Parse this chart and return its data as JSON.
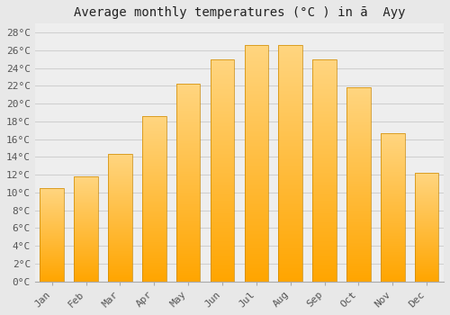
{
  "title": "Average monthly temperatures (°C ) in ā  Ayy",
  "months": [
    "Jan",
    "Feb",
    "Mar",
    "Apr",
    "May",
    "Jun",
    "Jul",
    "Aug",
    "Sep",
    "Oct",
    "Nov",
    "Dec"
  ],
  "temperatures": [
    10.5,
    11.8,
    14.3,
    18.6,
    22.2,
    25.0,
    26.6,
    26.6,
    25.0,
    21.8,
    16.7,
    12.2
  ],
  "bar_color_bottom": "#FFA500",
  "bar_color_top": "#FFD580",
  "bar_edge_color": "#CC8800",
  "background_color": "#e8e8e8",
  "plot_background": "#eeeeee",
  "grid_color": "#d0d0d0",
  "ylim": [
    0,
    29
  ],
  "yticks": [
    0,
    2,
    4,
    6,
    8,
    10,
    12,
    14,
    16,
    18,
    20,
    22,
    24,
    26,
    28
  ],
  "ytick_labels": [
    "0°C",
    "2°C",
    "4°C",
    "6°C",
    "8°C",
    "10°C",
    "12°C",
    "14°C",
    "16°C",
    "18°C",
    "20°C",
    "22°C",
    "24°C",
    "26°C",
    "28°C"
  ],
  "title_fontsize": 10,
  "tick_fontsize": 8,
  "font_family": "monospace",
  "bar_width": 0.7,
  "gradient_steps": 200
}
